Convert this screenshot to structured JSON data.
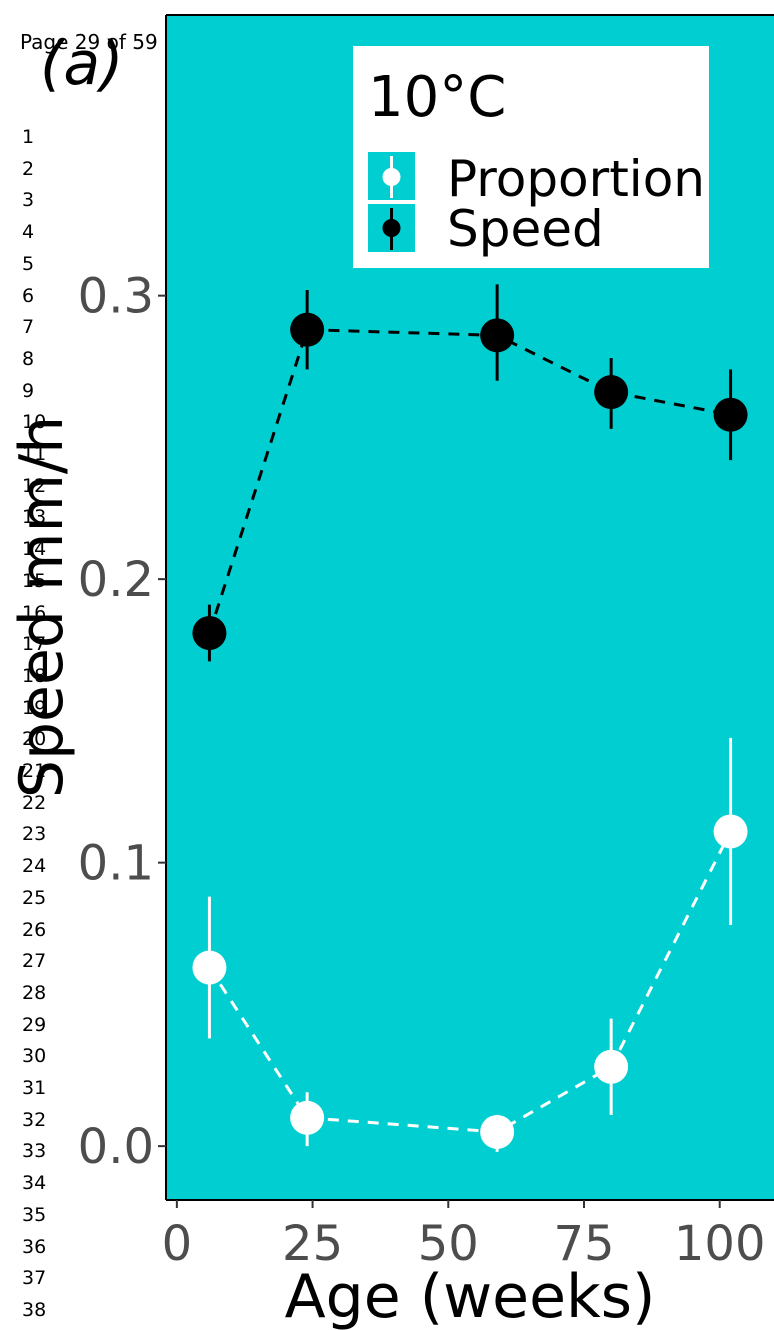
{
  "page": {
    "header": "Page 29 of 59",
    "line_numbers": [
      "1",
      "2",
      "3",
      "4",
      "5",
      "6",
      "7",
      "8",
      "9",
      "10",
      "11",
      "12",
      "13",
      "14",
      "15",
      "16",
      "17",
      "18",
      "19",
      "20",
      "21",
      "22",
      "23",
      "24",
      "25",
      "26",
      "27",
      "28",
      "29",
      "30",
      "31",
      "32",
      "33",
      "34",
      "35",
      "36",
      "37",
      "38"
    ]
  },
  "chart_data": {
    "type": "line",
    "panel_label": "(a)",
    "title": "",
    "xlabel": "Age (weeks)",
    "ylabel": "Speed mm/h",
    "xlim": [
      -2,
      110
    ],
    "ylim": [
      -0.019,
      0.399
    ],
    "xticks": [
      0,
      25,
      50,
      75,
      100
    ],
    "yticks": [
      0.0,
      0.1,
      0.2,
      0.3
    ],
    "ytick_labels": [
      "0.0",
      "0.1",
      "0.2",
      "0.3"
    ],
    "grid": false,
    "background_color": "#00CED1",
    "legend": {
      "title": "10°C",
      "position": "top-right",
      "entries": [
        "Proportion",
        "Speed"
      ]
    },
    "series": [
      {
        "name": "Proportion",
        "color": "#ffffff",
        "x": [
          6,
          24,
          59,
          80,
          102
        ],
        "y": [
          0.063,
          0.01,
          0.005,
          0.028,
          0.111
        ],
        "y_low": [
          0.038,
          0.0,
          -0.002,
          0.011,
          0.078
        ],
        "y_high": [
          0.088,
          0.019,
          0.011,
          0.045,
          0.144
        ]
      },
      {
        "name": "Speed",
        "color": "#000000",
        "x": [
          6,
          24,
          59,
          80,
          102
        ],
        "y": [
          0.181,
          0.288,
          0.286,
          0.266,
          0.258
        ],
        "y_low": [
          0.171,
          0.274,
          0.27,
          0.253,
          0.242
        ],
        "y_high": [
          0.191,
          0.302,
          0.304,
          0.278,
          0.274
        ]
      }
    ]
  }
}
